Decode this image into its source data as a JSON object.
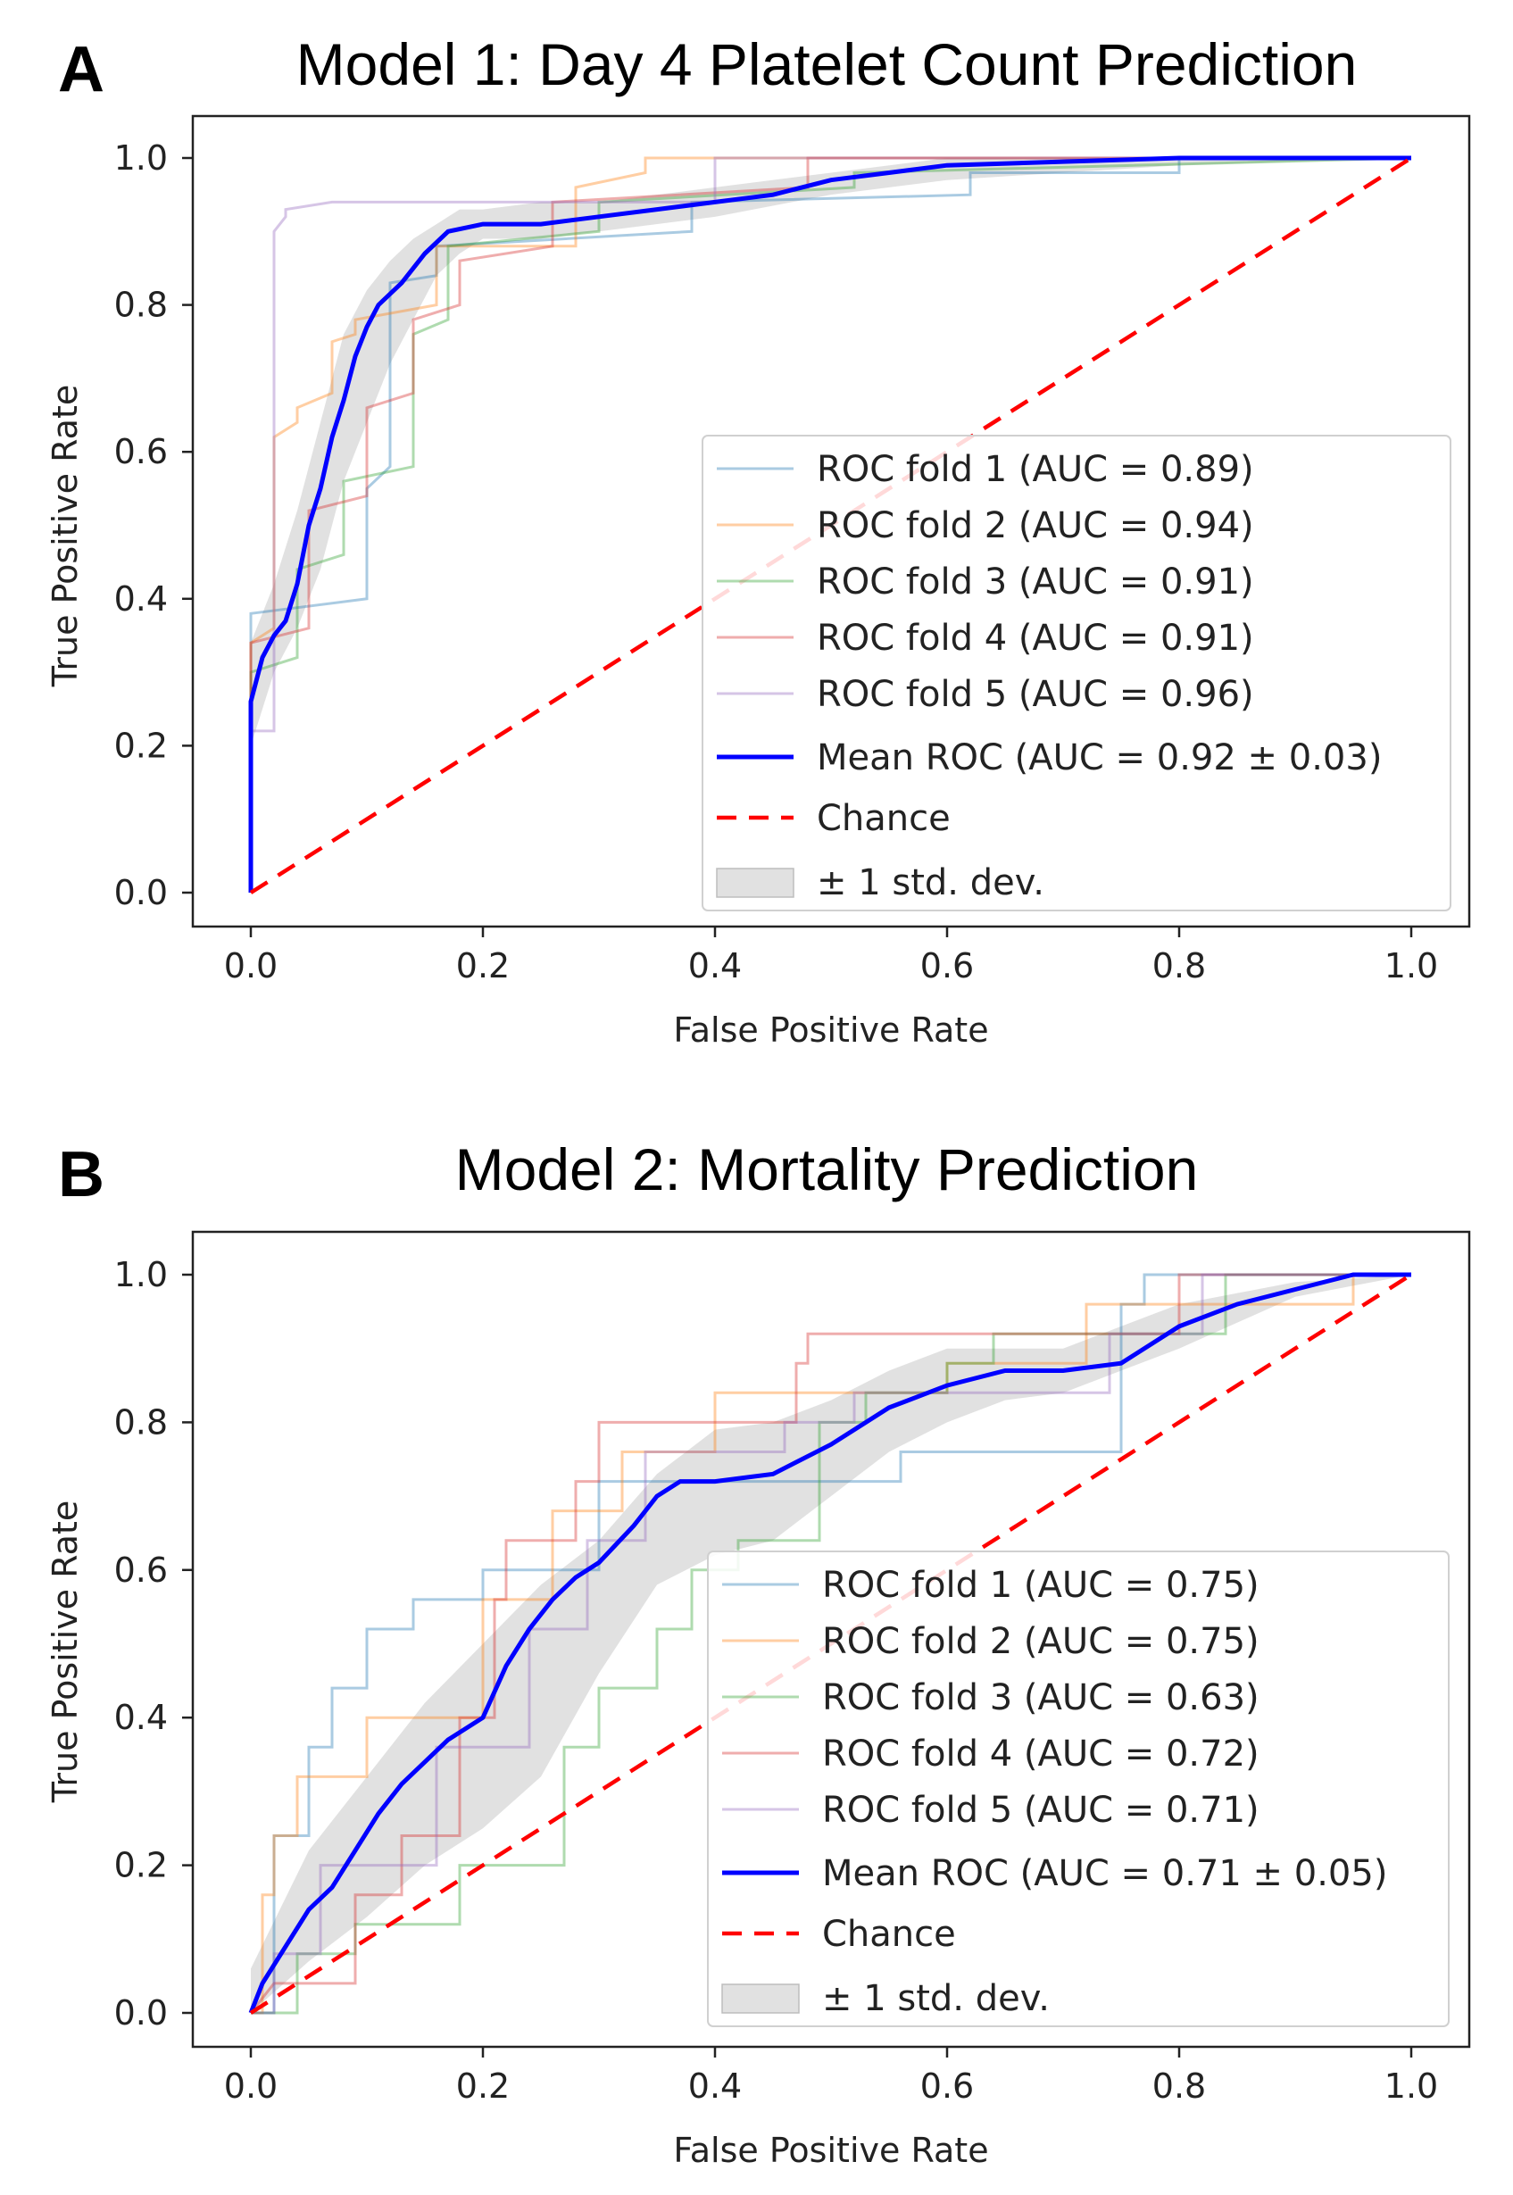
{
  "figure": {
    "panels": [
      {
        "letter": "A"
      },
      {
        "letter": "B"
      }
    ]
  },
  "chart_data": [
    {
      "type": "line",
      "title": "Model 1: Day 4 Platelet Count Prediction",
      "xlabel": "False Positive Rate",
      "ylabel": "True Positive Rate",
      "xlim": [
        0,
        1
      ],
      "ylim": [
        0,
        1
      ],
      "xticks": [
        "0.0",
        "0.2",
        "0.4",
        "0.6",
        "0.8",
        "1.0"
      ],
      "yticks": [
        "0.0",
        "0.2",
        "0.4",
        "0.6",
        "0.8",
        "1.0"
      ],
      "legend_position": "lower-right",
      "series": [
        {
          "name": "ROC fold 1 (AUC = 0.89)",
          "color": "#1f77b4",
          "style": "step-faint",
          "x": [
            0,
            0,
            0.1,
            0.1,
            0.12,
            0.12,
            0.16,
            0.16,
            0.38,
            0.38,
            0.62,
            0.62,
            0.8,
            0.8,
            1.0
          ],
          "y": [
            0,
            0.38,
            0.4,
            0.55,
            0.58,
            0.83,
            0.84,
            0.88,
            0.9,
            0.94,
            0.95,
            0.98,
            0.98,
            1.0,
            1.0
          ]
        },
        {
          "name": "ROC fold 2 (AUC = 0.94)",
          "color": "#ff7f0e",
          "style": "step-faint",
          "x": [
            0,
            0,
            0.02,
            0.02,
            0.04,
            0.04,
            0.07,
            0.07,
            0.09,
            0.09,
            0.16,
            0.16,
            0.28,
            0.28,
            0.34,
            0.34,
            1.0
          ],
          "y": [
            0,
            0.34,
            0.36,
            0.62,
            0.64,
            0.66,
            0.68,
            0.75,
            0.76,
            0.78,
            0.8,
            0.88,
            0.88,
            0.96,
            0.98,
            1.0,
            1.0
          ]
        },
        {
          "name": "ROC fold 3 (AUC = 0.91)",
          "color": "#2ca02c",
          "style": "step-faint",
          "x": [
            0,
            0,
            0.04,
            0.04,
            0.08,
            0.08,
            0.14,
            0.14,
            0.17,
            0.17,
            0.3,
            0.3,
            0.52,
            0.52,
            1.0
          ],
          "y": [
            0,
            0.3,
            0.32,
            0.44,
            0.46,
            0.56,
            0.58,
            0.76,
            0.78,
            0.88,
            0.9,
            0.94,
            0.96,
            0.98,
            1.0
          ]
        },
        {
          "name": "ROC fold 4 (AUC = 0.91)",
          "color": "#d62728",
          "style": "step-faint",
          "x": [
            0,
            0,
            0.05,
            0.05,
            0.1,
            0.1,
            0.14,
            0.14,
            0.18,
            0.18,
            0.26,
            0.26,
            0.48,
            0.48,
            1.0
          ],
          "y": [
            0,
            0.34,
            0.36,
            0.52,
            0.54,
            0.66,
            0.68,
            0.78,
            0.8,
            0.86,
            0.88,
            0.94,
            0.96,
            1.0,
            1.0
          ]
        },
        {
          "name": "ROC fold 5 (AUC = 0.96)",
          "color": "#9467bd",
          "style": "step-faint",
          "x": [
            0,
            0,
            0.02,
            0.02,
            0.03,
            0.03,
            0.07,
            0.07,
            0.4,
            0.4,
            1.0
          ],
          "y": [
            0,
            0.22,
            0.22,
            0.9,
            0.92,
            0.93,
            0.94,
            0.94,
            0.94,
            1.0,
            1.0
          ]
        },
        {
          "name": "Mean ROC (AUC = 0.92 ± 0.03)",
          "color": "#0000ff",
          "style": "mean",
          "x": [
            0,
            0,
            0.01,
            0.02,
            0.03,
            0.04,
            0.05,
            0.06,
            0.07,
            0.08,
            0.09,
            0.1,
            0.11,
            0.13,
            0.15,
            0.17,
            0.2,
            0.25,
            0.3,
            0.35,
            0.4,
            0.45,
            0.5,
            0.55,
            0.6,
            0.7,
            0.8,
            0.9,
            1.0
          ],
          "y": [
            0,
            0.26,
            0.32,
            0.35,
            0.37,
            0.42,
            0.5,
            0.55,
            0.62,
            0.67,
            0.73,
            0.77,
            0.8,
            0.83,
            0.87,
            0.9,
            0.91,
            0.91,
            0.92,
            0.93,
            0.94,
            0.95,
            0.97,
            0.98,
            0.99,
            0.995,
            1.0,
            1.0,
            1.0
          ]
        },
        {
          "name": "Chance",
          "color": "#ff0000",
          "style": "dashed",
          "x": [
            0,
            1
          ],
          "y": [
            0,
            1
          ]
        }
      ],
      "std_band": {
        "name": "± 1 std. dev.",
        "color": "#c8c8c8",
        "x": [
          0,
          0.02,
          0.04,
          0.06,
          0.08,
          0.1,
          0.12,
          0.14,
          0.16,
          0.18,
          0.2,
          0.25,
          0.3,
          0.4,
          0.5,
          0.6,
          0.8,
          1.0
        ],
        "lower": [
          0.2,
          0.3,
          0.36,
          0.44,
          0.56,
          0.64,
          0.72,
          0.78,
          0.84,
          0.87,
          0.89,
          0.89,
          0.9,
          0.92,
          0.95,
          0.97,
          0.99,
          1.0
        ],
        "upper": [
          0.34,
          0.42,
          0.52,
          0.64,
          0.76,
          0.82,
          0.86,
          0.89,
          0.91,
          0.93,
          0.93,
          0.94,
          0.94,
          0.96,
          0.98,
          1.0,
          1.0,
          1.0
        ]
      }
    },
    {
      "type": "line",
      "title": "Model 2: Mortality Prediction",
      "xlabel": "False Positive Rate",
      "ylabel": "True Positive Rate",
      "xlim": [
        0,
        1
      ],
      "ylim": [
        0,
        1
      ],
      "xticks": [
        "0.0",
        "0.2",
        "0.4",
        "0.6",
        "0.8",
        "1.0"
      ],
      "yticks": [
        "0.0",
        "0.2",
        "0.4",
        "0.6",
        "0.8",
        "1.0"
      ],
      "legend_position": "lower-right",
      "series": [
        {
          "name": "ROC fold 1 (AUC = 0.75)",
          "color": "#1f77b4",
          "style": "step-faint",
          "x": [
            0,
            0.02,
            0.02,
            0.05,
            0.05,
            0.07,
            0.07,
            0.1,
            0.1,
            0.14,
            0.14,
            0.2,
            0.2,
            0.3,
            0.3,
            0.56,
            0.56,
            0.75,
            0.75,
            0.77,
            0.77,
            1.0
          ],
          "y": [
            0,
            0,
            0.24,
            0.24,
            0.36,
            0.36,
            0.44,
            0.44,
            0.52,
            0.52,
            0.56,
            0.56,
            0.6,
            0.6,
            0.72,
            0.72,
            0.76,
            0.76,
            0.96,
            0.96,
            1.0,
            1.0
          ]
        },
        {
          "name": "ROC fold 2 (AUC = 0.75)",
          "color": "#ff7f0e",
          "style": "step-faint",
          "x": [
            0,
            0.01,
            0.01,
            0.02,
            0.02,
            0.04,
            0.04,
            0.1,
            0.1,
            0.2,
            0.2,
            0.26,
            0.26,
            0.32,
            0.32,
            0.4,
            0.4,
            0.6,
            0.6,
            0.72,
            0.72,
            0.95,
            0.95,
            1.0
          ],
          "y": [
            0,
            0,
            0.16,
            0.16,
            0.24,
            0.24,
            0.32,
            0.32,
            0.4,
            0.4,
            0.56,
            0.56,
            0.68,
            0.68,
            0.76,
            0.76,
            0.84,
            0.84,
            0.88,
            0.88,
            0.96,
            0.96,
            1.0,
            1.0
          ]
        },
        {
          "name": "ROC fold 3 (AUC = 0.63)",
          "color": "#2ca02c",
          "style": "step-faint",
          "x": [
            0,
            0.04,
            0.04,
            0.09,
            0.09,
            0.18,
            0.18,
            0.27,
            0.27,
            0.3,
            0.3,
            0.35,
            0.35,
            0.38,
            0.38,
            0.42,
            0.42,
            0.49,
            0.49,
            0.53,
            0.53,
            0.6,
            0.6,
            0.64,
            0.64,
            0.84,
            0.84,
            1.0
          ],
          "y": [
            0,
            0,
            0.08,
            0.08,
            0.12,
            0.12,
            0.2,
            0.2,
            0.36,
            0.36,
            0.44,
            0.44,
            0.52,
            0.52,
            0.6,
            0.6,
            0.64,
            0.64,
            0.8,
            0.8,
            0.84,
            0.84,
            0.88,
            0.88,
            0.92,
            0.92,
            1.0,
            1.0
          ]
        },
        {
          "name": "ROC fold 4 (AUC = 0.72)",
          "color": "#d62728",
          "style": "step-faint",
          "x": [
            0,
            0.02,
            0.02,
            0.09,
            0.09,
            0.13,
            0.13,
            0.18,
            0.18,
            0.21,
            0.21,
            0.22,
            0.22,
            0.28,
            0.28,
            0.3,
            0.3,
            0.47,
            0.47,
            0.48,
            0.48,
            0.8,
            0.8,
            1.0
          ],
          "y": [
            0,
            0.04,
            0.04,
            0.04,
            0.16,
            0.16,
            0.24,
            0.24,
            0.4,
            0.4,
            0.56,
            0.56,
            0.64,
            0.64,
            0.72,
            0.72,
            0.8,
            0.8,
            0.88,
            0.88,
            0.92,
            0.92,
            1.0,
            1.0
          ]
        },
        {
          "name": "ROC fold 5 (AUC = 0.71)",
          "color": "#9467bd",
          "style": "step-faint",
          "x": [
            0,
            0.02,
            0.02,
            0.06,
            0.06,
            0.16,
            0.16,
            0.24,
            0.24,
            0.29,
            0.29,
            0.34,
            0.34,
            0.46,
            0.46,
            0.52,
            0.52,
            0.74,
            0.74,
            0.82,
            0.82,
            1.0
          ],
          "y": [
            0,
            0,
            0.08,
            0.08,
            0.2,
            0.2,
            0.36,
            0.36,
            0.52,
            0.52,
            0.64,
            0.64,
            0.76,
            0.76,
            0.8,
            0.8,
            0.84,
            0.84,
            0.92,
            0.92,
            1.0,
            1.0
          ]
        },
        {
          "name": "Mean ROC (AUC = 0.71 ± 0.05)",
          "color": "#0000ff",
          "style": "mean",
          "x": [
            0,
            0.01,
            0.03,
            0.05,
            0.07,
            0.09,
            0.11,
            0.13,
            0.15,
            0.17,
            0.2,
            0.22,
            0.24,
            0.26,
            0.28,
            0.3,
            0.33,
            0.35,
            0.37,
            0.4,
            0.45,
            0.5,
            0.55,
            0.6,
            0.65,
            0.7,
            0.75,
            0.8,
            0.85,
            0.9,
            0.95,
            1.0
          ],
          "y": [
            0,
            0.04,
            0.09,
            0.14,
            0.17,
            0.22,
            0.27,
            0.31,
            0.34,
            0.37,
            0.4,
            0.47,
            0.52,
            0.56,
            0.59,
            0.61,
            0.66,
            0.7,
            0.72,
            0.72,
            0.73,
            0.77,
            0.82,
            0.85,
            0.87,
            0.87,
            0.88,
            0.93,
            0.96,
            0.98,
            1.0,
            1.0
          ]
        },
        {
          "name": "Chance",
          "color": "#ff0000",
          "style": "dashed",
          "x": [
            0,
            1
          ],
          "y": [
            0,
            1
          ]
        }
      ],
      "std_band": {
        "name": "± 1 std. dev.",
        "color": "#c8c8c8",
        "x": [
          0,
          0.05,
          0.1,
          0.15,
          0.2,
          0.25,
          0.3,
          0.35,
          0.4,
          0.45,
          0.5,
          0.55,
          0.6,
          0.65,
          0.7,
          0.8,
          0.9,
          1.0
        ],
        "lower": [
          0,
          0.07,
          0.13,
          0.2,
          0.25,
          0.32,
          0.46,
          0.58,
          0.62,
          0.64,
          0.7,
          0.76,
          0.8,
          0.83,
          0.84,
          0.9,
          0.97,
          1.0
        ],
        "upper": [
          0.06,
          0.22,
          0.32,
          0.42,
          0.5,
          0.58,
          0.64,
          0.73,
          0.79,
          0.8,
          0.83,
          0.87,
          0.9,
          0.9,
          0.9,
          0.96,
          0.99,
          1.0
        ]
      }
    }
  ]
}
